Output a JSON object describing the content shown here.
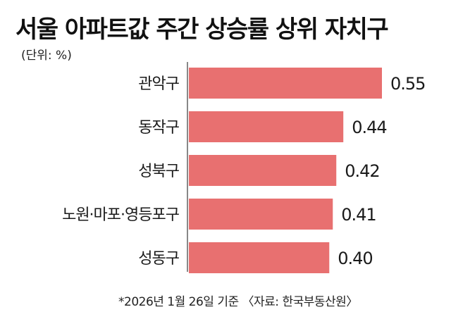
{
  "title": "서울 아파트값 주간 상승률 상위 자치구",
  "unit_label": "(단위: %)",
  "footnote": "*2026년 1월 26일 기준 〈자료: 한국부동산원〉",
  "colors": {
    "bar": "#e87070",
    "axis": "#555555"
  },
  "chart_data": {
    "type": "bar",
    "orientation": "horizontal",
    "title": "서울 아파트값 주간 상승률 상위 자치구",
    "categories": [
      "관악구",
      "동작구",
      "성북구",
      "노원·마포·영등포구",
      "성동구"
    ],
    "values": [
      0.55,
      0.44,
      0.42,
      0.41,
      0.4
    ],
    "value_labels": [
      "0.55",
      "0.44",
      "0.42",
      "0.41",
      "0.40"
    ],
    "xlim": [
      0,
      0.55
    ],
    "grid": false
  }
}
